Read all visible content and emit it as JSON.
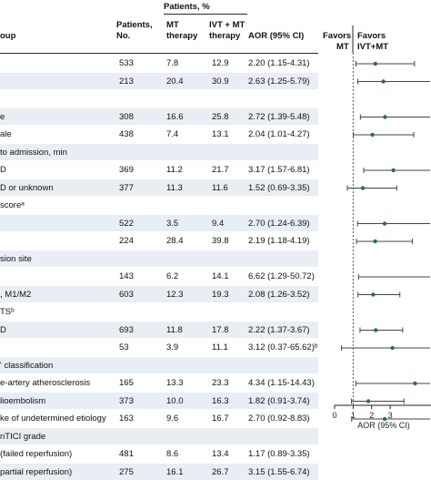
{
  "header": {
    "patients_pct": "Patients, %",
    "subgroup": "oup",
    "patients_no_1": "Patients,",
    "patients_no_2": "No.",
    "mt_1": "MT",
    "mt_2": "therapy",
    "ivtmt_1": "IVT + MT",
    "ivtmt_2": "therapy",
    "aor": "AOR (95% CI)",
    "favors_mt_1": "Favors",
    "favors_mt_2": "MT",
    "favors_ivt_1": "Favors",
    "favors_ivt_2": "IVT+MT"
  },
  "rows": [
    {
      "label": "",
      "n": "533",
      "mt": "7.8",
      "ivt": "12.9",
      "aor": "2.20 (1.15-4.31)"
    },
    {
      "label": "",
      "n": "213",
      "mt": "20.4",
      "ivt": "30.9",
      "aor": "2.63 (1.25-5.79)"
    },
    {
      "label": "",
      "n": "",
      "mt": "",
      "ivt": "",
      "aor": ""
    },
    {
      "label": "e",
      "n": "308",
      "mt": "16.6",
      "ivt": "25.8",
      "aor": "2.72 (1.39-5.48)"
    },
    {
      "label": "ale",
      "n": "438",
      "mt": "7.4",
      "ivt": "13.1",
      "aor": "2.04 (1.01-4.27)"
    },
    {
      "label": "to admission, min",
      "n": "",
      "mt": "",
      "ivt": "",
      "aor": ""
    },
    {
      "label": "D",
      "n": "369",
      "mt": "11.2",
      "ivt": "21.7",
      "aor": "3.17 (1.57-6.81)"
    },
    {
      "label": "D or unknown",
      "n": "377",
      "mt": "11.3",
      "ivt": "11.6",
      "aor": "1.52 (0.69-3.35)"
    },
    {
      "label": "scoreᵃ",
      "n": "",
      "mt": "",
      "ivt": "",
      "aor": ""
    },
    {
      "label": "",
      "n": "522",
      "mt": "3.5",
      "ivt": "9.4",
      "aor": "2.70 (1.24-6.39)"
    },
    {
      "label": "",
      "n": "224",
      "mt": "28.4",
      "ivt": "39.8",
      "aor": "2.19 (1.18-4.19)"
    },
    {
      "label": "sion site",
      "n": "",
      "mt": "",
      "ivt": "",
      "aor": ""
    },
    {
      "label": "",
      "n": "143",
      "mt": "6.2",
      "ivt": "14.1",
      "aor": "6.62 (1.29-50.72)"
    },
    {
      "label": ", M1/M2",
      "n": "603",
      "mt": "12.3",
      "ivt": "19.3",
      "aor": "2.08 (1.26-3.52)"
    },
    {
      "label": "TSᵇ",
      "n": "",
      "mt": "",
      "ivt": "",
      "aor": ""
    },
    {
      "label": "D",
      "n": "693",
      "mt": "11.8",
      "ivt": "17.8",
      "aor": "2.22 (1.37-3.67)"
    },
    {
      "label": "",
      "n": "53",
      "mt": "3.9",
      "ivt": "11.1",
      "aor": "3.12 (0.37-65.62)ᵇ"
    },
    {
      "label": "' classification",
      "n": "",
      "mt": "",
      "ivt": "",
      "aor": ""
    },
    {
      "label": "e-artery atherosclerosis",
      "n": "165",
      "mt": "13.3",
      "ivt": "23.3",
      "aor": "4.34 (1.15-14.43)"
    },
    {
      "label": "lioembolism",
      "n": "373",
      "mt": "10.0",
      "ivt": "16.3",
      "aor": "1.82 (0.91-3.74)"
    },
    {
      "label": "ke of undetermined etiology",
      "n": "163",
      "mt": "9.6",
      "ivt": "16.7",
      "aor": "2.70 (0.92-8.83)"
    },
    {
      "label": "nTICI grade",
      "n": "",
      "mt": "",
      "ivt": "",
      "aor": ""
    },
    {
      "label": "(failed reperfusion)",
      "n": "481",
      "mt": "8.6",
      "ivt": "13.4",
      "aor": "1.17 (0.89-3.35)"
    },
    {
      "label": "partial reperfusion)",
      "n": "275",
      "mt": "16.1",
      "ivt": "26.7",
      "aor": "3.15 (1.55-6.74)"
    }
  ],
  "chart_data": {
    "type": "forest",
    "xlabel": "AOR (95% CI)",
    "x_ticks": [
      "0",
      "1",
      "2",
      "3"
    ],
    "x_tick_values": [
      0,
      1,
      2,
      3
    ],
    "xlim": [
      0,
      5.2
    ],
    "reference_line": 1,
    "marker_color": "#2e6b5a",
    "band_color": "#e8eef3",
    "points": [
      {
        "row": 0,
        "aor": 2.2,
        "low": 1.15,
        "high": 4.31
      },
      {
        "row": 1,
        "aor": 2.63,
        "low": 1.25,
        "high": 5.79
      },
      {
        "row": 3,
        "aor": 2.72,
        "low": 1.39,
        "high": 5.48
      },
      {
        "row": 4,
        "aor": 2.04,
        "low": 1.01,
        "high": 4.27
      },
      {
        "row": 6,
        "aor": 3.17,
        "low": 1.57,
        "high": 6.81
      },
      {
        "row": 7,
        "aor": 1.52,
        "low": 0.69,
        "high": 3.35
      },
      {
        "row": 9,
        "aor": 2.7,
        "low": 1.24,
        "high": 6.39
      },
      {
        "row": 10,
        "aor": 2.19,
        "low": 1.18,
        "high": 4.19
      },
      {
        "row": 12,
        "aor": 6.62,
        "low": 1.29,
        "high": 50.72
      },
      {
        "row": 13,
        "aor": 2.08,
        "low": 1.26,
        "high": 3.52
      },
      {
        "row": 15,
        "aor": 2.22,
        "low": 1.37,
        "high": 3.67
      },
      {
        "row": 16,
        "aor": 3.12,
        "low": 0.37,
        "high": 65.62
      },
      {
        "row": 18,
        "aor": 4.34,
        "low": 1.15,
        "high": 14.43
      },
      {
        "row": 19,
        "aor": 1.82,
        "low": 0.91,
        "high": 3.74
      },
      {
        "row": 20,
        "aor": 2.7,
        "low": 0.92,
        "high": 8.83
      },
      {
        "row": 22,
        "aor": 1.17,
        "low": 0.89,
        "high": 3.35
      },
      {
        "row": 23,
        "aor": 3.15,
        "low": 1.55,
        "high": 6.74
      }
    ]
  }
}
